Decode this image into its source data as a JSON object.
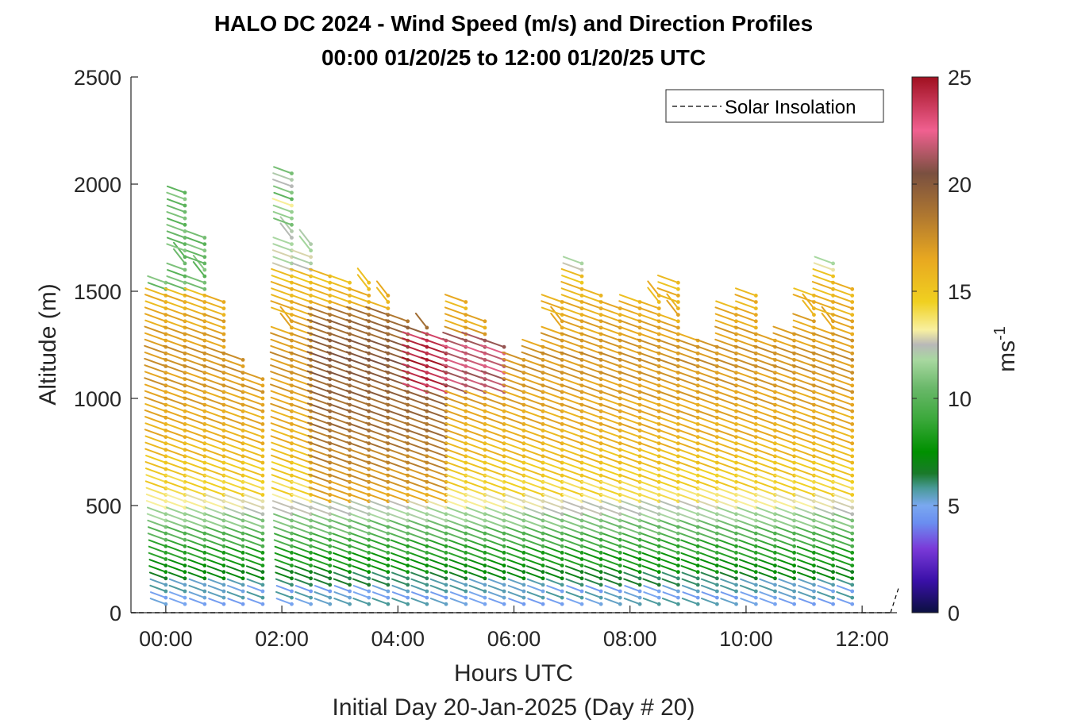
{
  "chart_data": {
    "type": "scatter",
    "title": "HALO DC 2024 - Wind Speed (m/s) and Direction Profiles",
    "subtitle": "00:00 01/20/25 to 12:00 01/20/25  UTC",
    "xlabel": "Hours UTC",
    "xlabel2": "Initial Day 20-Jan-2025 (Day # 20)",
    "ylabel": "Altitude (m)",
    "xlim": [
      -0.6,
      12.6
    ],
    "ylim": [
      0,
      2500
    ],
    "x_ticks": [
      0,
      2,
      4,
      6,
      8,
      10,
      12
    ],
    "x_tick_labels": [
      "00:00",
      "02:00",
      "04:00",
      "06:00",
      "08:00",
      "10:00",
      "12:00"
    ],
    "y_ticks": [
      0,
      500,
      1000,
      1500,
      2000,
      2500
    ],
    "y_tick_labels": [
      "0",
      "500",
      "1000",
      "1500",
      "2000",
      "2500"
    ],
    "colorbar": {
      "label": "ms",
      "label_superscript": "-1",
      "range": [
        0,
        25
      ],
      "ticks": [
        0,
        5,
        10,
        15,
        20,
        25
      ],
      "tick_labels": [
        "0",
        "5",
        "10",
        "15",
        "20",
        "25"
      ],
      "stops": [
        {
          "v": 0,
          "color": "#0b1040"
        },
        {
          "v": 1.5,
          "color": "#3a10a8"
        },
        {
          "v": 3,
          "color": "#7a3ad8"
        },
        {
          "v": 4.2,
          "color": "#6a8ef0"
        },
        {
          "v": 5,
          "color": "#7aa8f0"
        },
        {
          "v": 5.8,
          "color": "#4a9a9a"
        },
        {
          "v": 6.5,
          "color": "#1a7a2a"
        },
        {
          "v": 7.5,
          "color": "#009000"
        },
        {
          "v": 9,
          "color": "#3aa83a"
        },
        {
          "v": 10.5,
          "color": "#6ab86a"
        },
        {
          "v": 11.8,
          "color": "#a8d8a0"
        },
        {
          "v": 12.5,
          "color": "#b8b8b8"
        },
        {
          "v": 13.2,
          "color": "#f8f0a0"
        },
        {
          "v": 14.5,
          "color": "#f0d020"
        },
        {
          "v": 16.5,
          "color": "#e8a820"
        },
        {
          "v": 18.5,
          "color": "#b07830"
        },
        {
          "v": 20.5,
          "color": "#7a5040"
        },
        {
          "v": 22.5,
          "color": "#f06090"
        },
        {
          "v": 25,
          "color": "#a01020"
        }
      ]
    },
    "legend": {
      "entries": [
        "Solar Insolation"
      ],
      "placement": "top-right"
    },
    "profiles": [
      {
        "t": 0.0,
        "top": 1560
      },
      {
        "t": 0.33,
        "top": 1980
      },
      {
        "t": 0.67,
        "top": 1760
      },
      {
        "t": 1.0,
        "top": 1450
      },
      {
        "t": 1.33,
        "top": 1200
      },
      {
        "t": 1.67,
        "top": 1100
      },
      {
        "t": 2.17,
        "top": 2070
      },
      {
        "t": 2.5,
        "top": 1720
      },
      {
        "t": 2.83,
        "top": 1580
      },
      {
        "t": 3.17,
        "top": 1560
      },
      {
        "t": 3.5,
        "top": 1540
      },
      {
        "t": 3.83,
        "top": 1480
      },
      {
        "t": 4.17,
        "top": 1360
      },
      {
        "t": 4.5,
        "top": 1330
      },
      {
        "t": 4.83,
        "top": 1280
      },
      {
        "t": 5.17,
        "top": 1460
      },
      {
        "t": 5.5,
        "top": 1360
      },
      {
        "t": 5.83,
        "top": 1240
      },
      {
        "t": 6.17,
        "top": 1200
      },
      {
        "t": 6.5,
        "top": 1260
      },
      {
        "t": 6.83,
        "top": 1450
      },
      {
        "t": 7.17,
        "top": 1640
      },
      {
        "t": 7.5,
        "top": 1490
      },
      {
        "t": 7.83,
        "top": 1440
      },
      {
        "t": 8.17,
        "top": 1470
      },
      {
        "t": 8.5,
        "top": 1480
      },
      {
        "t": 8.83,
        "top": 1560
      },
      {
        "t": 9.17,
        "top": 1280
      },
      {
        "t": 9.5,
        "top": 1250
      },
      {
        "t": 9.83,
        "top": 1440
      },
      {
        "t": 10.17,
        "top": 1490
      },
      {
        "t": 10.5,
        "top": 1280
      },
      {
        "t": 10.83,
        "top": 1310
      },
      {
        "t": 11.17,
        "top": 1480
      },
      {
        "t": 11.5,
        "top": 1640
      },
      {
        "t": 11.83,
        "top": 1520
      }
    ]
  }
}
